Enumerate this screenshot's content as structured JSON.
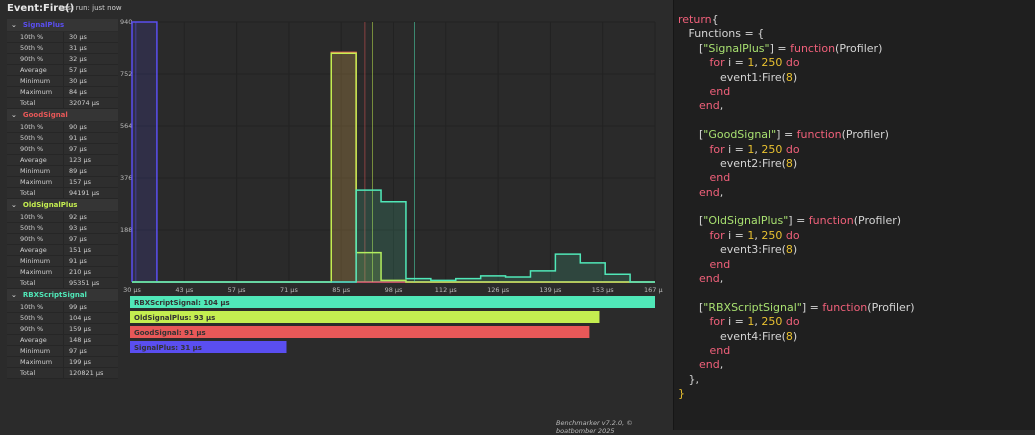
{
  "header": {
    "title": "Event:Fire()",
    "last_run": "Last run: just now"
  },
  "stat_labels": [
    "10th %",
    "50th %",
    "90th %",
    "Average",
    "Minimum",
    "Maximum",
    "Total"
  ],
  "series": [
    {
      "name": "SignalPlus",
      "color": "#5a4ef0",
      "stats": [
        "30 µs",
        "31 µs",
        "32 µs",
        "57 µs",
        "30 µs",
        "84 µs",
        "32074 µs"
      ],
      "bar_label": "SignalPlus: 31 µs",
      "median": 31
    },
    {
      "name": "GoodSignal",
      "color": "#e85858",
      "stats": [
        "90 µs",
        "91 µs",
        "97 µs",
        "123 µs",
        "89 µs",
        "157 µs",
        "94191 µs"
      ],
      "bar_label": "GoodSignal: 91 µs",
      "median": 91
    },
    {
      "name": "OldSignalPlus",
      "color": "#c4ee50",
      "stats": [
        "92 µs",
        "93 µs",
        "97 µs",
        "151 µs",
        "91 µs",
        "210 µs",
        "95351 µs"
      ],
      "bar_label": "OldSignalPlus: 93 µs",
      "median": 93
    },
    {
      "name": "RBXScriptSignal",
      "color": "#50e8b8",
      "stats": [
        "99 µs",
        "104 µs",
        "159 µs",
        "148 µs",
        "97 µs",
        "199 µs",
        "120821 µs"
      ],
      "bar_label": "RBXScriptSignal: 104 µs",
      "median": 104
    }
  ],
  "chart_data": {
    "type": "histogram",
    "xlim": [
      30,
      167
    ],
    "ylim": [
      0,
      940
    ],
    "x_ticks": [
      "30 µs",
      "43 µs",
      "57 µs",
      "71 µs",
      "85 µs",
      "98 µs",
      "112 µs",
      "126 µs",
      "139 µs",
      "153 µs",
      "167 µs"
    ],
    "y_ticks": [
      "940",
      "752",
      "564",
      "376",
      "188"
    ],
    "bins": 21,
    "counts": {
      "SignalPlus": [
        940,
        0,
        0,
        0,
        0,
        0,
        0,
        0,
        0,
        0,
        0,
        0,
        0,
        0,
        0,
        0,
        0,
        0,
        0,
        0,
        0
      ],
      "GoodSignal": [
        0,
        0,
        0,
        0,
        0,
        0,
        0,
        0,
        830,
        0,
        0,
        0,
        0,
        0,
        0,
        0,
        0,
        0,
        0,
        0,
        0
      ],
      "OldSignalPlus": [
        0,
        0,
        0,
        0,
        0,
        0,
        0,
        0,
        827,
        106,
        6,
        0,
        0,
        0,
        0,
        0,
        0,
        0,
        0,
        0,
        0
      ],
      "RBXScriptSignal": [
        0,
        0,
        0,
        0,
        0,
        0,
        0,
        0,
        0,
        332,
        290,
        12,
        6,
        12,
        22,
        18,
        40,
        101,
        69,
        28,
        0
      ]
    },
    "median_lines": true,
    "grid": true
  },
  "footer": "Benchmarker v7.2.0, © boatbomber 2025",
  "code": [
    [
      [
        "kw",
        "return"
      ],
      [
        "",
        "{"
      ]
    ],
    [
      [
        "",
        "   Functions = {"
      ]
    ],
    [
      [
        "",
        "      ["
      ],
      [
        "str",
        "\"SignalPlus\""
      ],
      [
        "",
        "] = "
      ],
      [
        "kw",
        "function"
      ],
      [
        "",
        "(Profiler)"
      ]
    ],
    [
      [
        "kw",
        "         for"
      ],
      [
        "",
        " i = "
      ],
      [
        "num",
        "1"
      ],
      [
        "",
        ", "
      ],
      [
        "num",
        "250"
      ],
      [
        "kw",
        " do"
      ]
    ],
    [
      [
        "",
        "            event1:Fire("
      ],
      [
        "num",
        "8"
      ],
      [
        "",
        ")"
      ]
    ],
    [
      [
        "kw",
        "         end"
      ]
    ],
    [
      [
        "kw",
        "      end"
      ],
      [
        "",
        ","
      ]
    ],
    [
      [
        "",
        ""
      ]
    ],
    [
      [
        "",
        "      ["
      ],
      [
        "str",
        "\"GoodSignal\""
      ],
      [
        "",
        "] = "
      ],
      [
        "kw",
        "function"
      ],
      [
        "",
        "(Profiler)"
      ]
    ],
    [
      [
        "kw",
        "         for"
      ],
      [
        "",
        " i = "
      ],
      [
        "num",
        "1"
      ],
      [
        "",
        ", "
      ],
      [
        "num",
        "250"
      ],
      [
        "kw",
        " do"
      ]
    ],
    [
      [
        "",
        "            event2:Fire("
      ],
      [
        "num",
        "8"
      ],
      [
        "",
        ")"
      ]
    ],
    [
      [
        "kw",
        "         end"
      ]
    ],
    [
      [
        "kw",
        "      end"
      ],
      [
        "",
        ","
      ]
    ],
    [
      [
        "",
        ""
      ]
    ],
    [
      [
        "",
        "      ["
      ],
      [
        "str",
        "\"OldSignalPlus\""
      ],
      [
        "",
        "] = "
      ],
      [
        "kw",
        "function"
      ],
      [
        "",
        "(Profiler)"
      ]
    ],
    [
      [
        "kw",
        "         for"
      ],
      [
        "",
        " i = "
      ],
      [
        "num",
        "1"
      ],
      [
        "",
        ", "
      ],
      [
        "num",
        "250"
      ],
      [
        "kw",
        " do"
      ]
    ],
    [
      [
        "",
        "            event3:Fire("
      ],
      [
        "num",
        "8"
      ],
      [
        "",
        ")"
      ]
    ],
    [
      [
        "kw",
        "         end"
      ]
    ],
    [
      [
        "kw",
        "      end"
      ],
      [
        "",
        ","
      ]
    ],
    [
      [
        "",
        ""
      ]
    ],
    [
      [
        "",
        "      ["
      ],
      [
        "str",
        "\"RBXScriptSignal\""
      ],
      [
        "",
        "] = "
      ],
      [
        "kw",
        "function"
      ],
      [
        "",
        "(Profiler)"
      ]
    ],
    [
      [
        "kw",
        "         for"
      ],
      [
        "",
        " i = "
      ],
      [
        "num",
        "1"
      ],
      [
        "",
        ", "
      ],
      [
        "num",
        "250"
      ],
      [
        "kw",
        " do"
      ]
    ],
    [
      [
        "",
        "            event4:Fire("
      ],
      [
        "num",
        "8"
      ],
      [
        "",
        ")"
      ]
    ],
    [
      [
        "kw",
        "         end"
      ]
    ],
    [
      [
        "kw",
        "      end"
      ],
      [
        "",
        ","
      ]
    ],
    [
      [
        "",
        "   },"
      ]
    ],
    [
      [
        "num",
        "}"
      ]
    ]
  ]
}
